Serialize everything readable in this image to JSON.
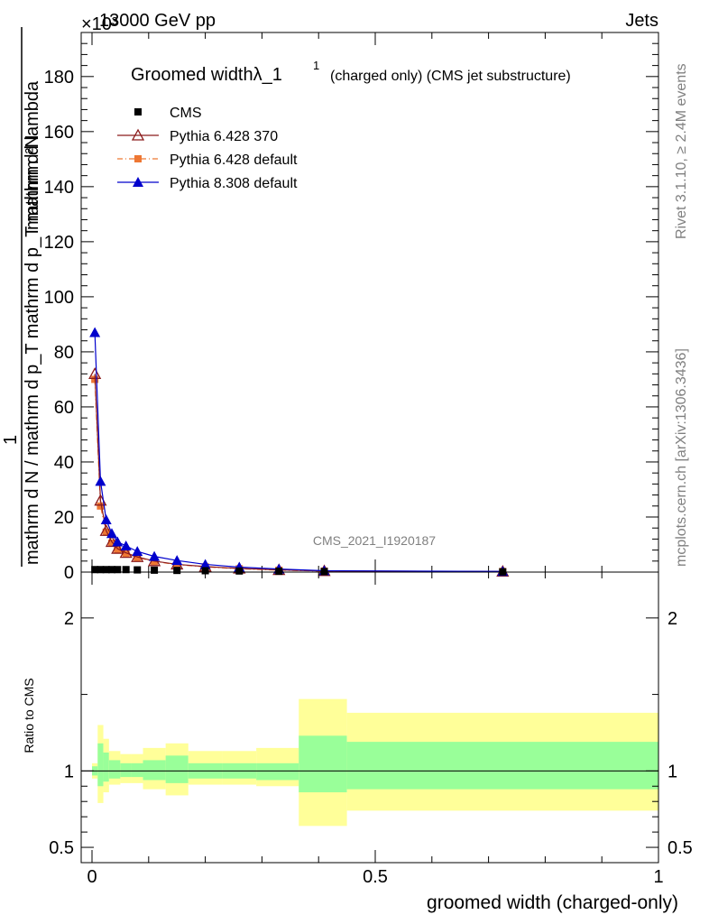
{
  "header": {
    "energy": "13000 GeV pp",
    "category": "Jets",
    "exponent": "×10³",
    "side_rivet": "Rivet 3.1.10, ≥ 2.4M events",
    "side_mcplots": "mcplots.cern.ch [arXiv:1306.3436]",
    "analysis_id": "CMS_2021_I1920187"
  },
  "chart_data": [
    {
      "type": "line",
      "title": "Groomed widthλ_1",
      "title_sup": "1",
      "subtitle": "(charged only) (CMS jet substructure)",
      "ylabel_numerator": "mathrm d²N",
      "ylabel_numerator_fraction": "1",
      "ylabel_denominator": "mathrm d N / mathrm d p_T mathrm d p_T mathrm d lambda",
      "ylabel_top": "mathrm d²N",
      "ylabel_bottom": "mathrm d N / mathrm d p_T mathrm d p_T mathrm d lambda",
      "ylabel_mid": "1",
      "y_scale_note": "×10³",
      "xlim": [
        0,
        1
      ],
      "ylim": [
        0,
        196
      ],
      "yticks": [
        "0",
        "20",
        "40",
        "60",
        "80",
        "100",
        "120",
        "140",
        "160",
        "180"
      ],
      "legend": [
        {
          "name": "CMS",
          "color": "#000000",
          "marker": "square"
        },
        {
          "name": "Pythia 6.428 370",
          "color": "#8b1a1a",
          "marker": "open-triangle"
        },
        {
          "name": "Pythia 6.428 default",
          "color": "#ee7733",
          "marker": "square-dashdot"
        },
        {
          "name": "Pythia 8.308 default",
          "color": "#0000cc",
          "marker": "triangle"
        }
      ],
      "series": [
        {
          "name": "CMS",
          "x": [
            0.005,
            0.015,
            0.025,
            0.035,
            0.045,
            0.06,
            0.08,
            0.11,
            0.15,
            0.2,
            0.26,
            0.33,
            0.41,
            0.725
          ],
          "y": [
            0.9,
            0.9,
            0.9,
            0.9,
            0.9,
            0.9,
            0.8,
            0.7,
            0.6,
            0.5,
            0.4,
            0.3,
            0.2,
            0.1
          ]
        },
        {
          "name": "Pythia 6.428 370",
          "x": [
            0.005,
            0.015,
            0.025,
            0.035,
            0.045,
            0.06,
            0.08,
            0.11,
            0.15,
            0.2,
            0.26,
            0.33,
            0.41,
            0.725
          ],
          "y": [
            72,
            26,
            15,
            11,
            8.5,
            7,
            5.5,
            4,
            2.8,
            2,
            1.3,
            0.8,
            0.4,
            0.2
          ]
        },
        {
          "name": "Pythia 6.428 default",
          "x": [
            0.005,
            0.015,
            0.025,
            0.035,
            0.045,
            0.06,
            0.08,
            0.11,
            0.15,
            0.2,
            0.26,
            0.33,
            0.41,
            0.725
          ],
          "y": [
            70,
            24,
            14.5,
            10.5,
            8,
            6.8,
            5.3,
            3.9,
            2.7,
            1.9,
            1.2,
            0.7,
            0.35,
            0.2
          ]
        },
        {
          "name": "Pythia 8.308 default",
          "x": [
            0.005,
            0.015,
            0.025,
            0.035,
            0.045,
            0.06,
            0.08,
            0.11,
            0.15,
            0.2,
            0.26,
            0.33,
            0.41,
            0.725
          ],
          "y": [
            87,
            33,
            19,
            14,
            11,
            9.5,
            7.5,
            5.7,
            4.2,
            2.8,
            1.8,
            1.1,
            0.5,
            0.25
          ]
        }
      ]
    },
    {
      "type": "area",
      "ylabel": "Ratio to CMS",
      "xlabel": "groomed width (charged-only)",
      "xlim": [
        0,
        1
      ],
      "ylim": [
        0.4,
        2.3
      ],
      "yticks": [
        "0.5",
        "1",
        "2"
      ],
      "xticks": [
        "0",
        "0.5",
        "1"
      ],
      "reference_line": 1,
      "band_colors": {
        "inner": "#99ff99",
        "outer": "#ffff99"
      },
      "bins": [
        {
          "lo": 0.0,
          "hi": 0.01,
          "inner": [
            0.97,
            1.03
          ],
          "outer": [
            0.95,
            1.05
          ]
        },
        {
          "lo": 0.01,
          "hi": 0.02,
          "inner": [
            0.9,
            1.18
          ],
          "outer": [
            0.79,
            1.3
          ]
        },
        {
          "lo": 0.02,
          "hi": 0.03,
          "inner": [
            0.93,
            1.12
          ],
          "outer": [
            0.86,
            1.21
          ]
        },
        {
          "lo": 0.03,
          "hi": 0.05,
          "inner": [
            0.95,
            1.07
          ],
          "outer": [
            0.91,
            1.13
          ]
        },
        {
          "lo": 0.05,
          "hi": 0.07,
          "inner": [
            0.96,
            1.05
          ],
          "outer": [
            0.92,
            1.11
          ]
        },
        {
          "lo": 0.07,
          "hi": 0.09,
          "inner": [
            0.96,
            1.05
          ],
          "outer": [
            0.92,
            1.11
          ]
        },
        {
          "lo": 0.09,
          "hi": 0.13,
          "inner": [
            0.94,
            1.07
          ],
          "outer": [
            0.88,
            1.15
          ]
        },
        {
          "lo": 0.13,
          "hi": 0.17,
          "inner": [
            0.92,
            1.1
          ],
          "outer": [
            0.84,
            1.18
          ]
        },
        {
          "lo": 0.17,
          "hi": 0.23,
          "inner": [
            0.95,
            1.05
          ],
          "outer": [
            0.91,
            1.13
          ]
        },
        {
          "lo": 0.23,
          "hi": 0.29,
          "inner": [
            0.95,
            1.05
          ],
          "outer": [
            0.91,
            1.13
          ]
        },
        {
          "lo": 0.29,
          "hi": 0.365,
          "inner": [
            0.94,
            1.05
          ],
          "outer": [
            0.9,
            1.15
          ]
        },
        {
          "lo": 0.365,
          "hi": 0.45,
          "inner": [
            0.86,
            1.23
          ],
          "outer": [
            0.64,
            1.47
          ]
        },
        {
          "lo": 0.45,
          "hi": 1.0,
          "inner": [
            0.88,
            1.19
          ],
          "outer": [
            0.74,
            1.38
          ]
        }
      ]
    }
  ]
}
